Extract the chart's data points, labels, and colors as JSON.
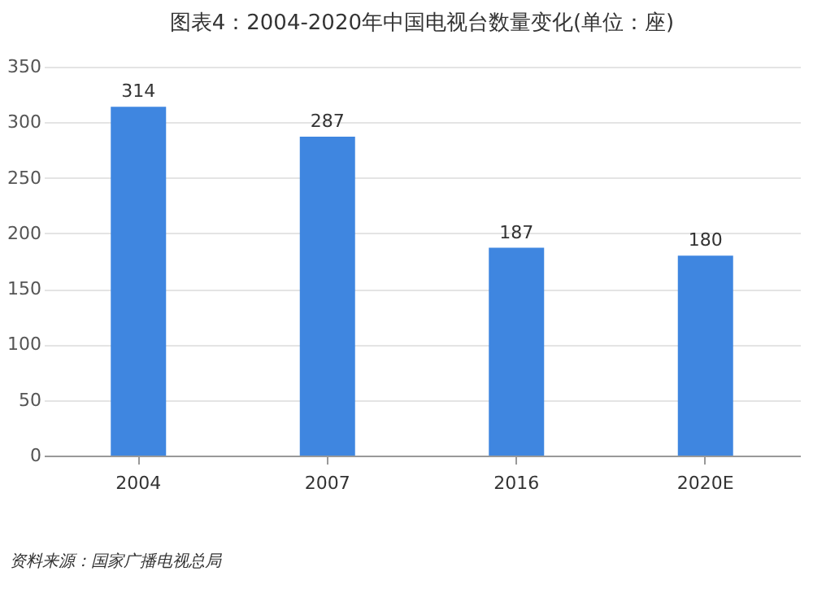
{
  "chart_data": {
    "type": "bar",
    "title": "图表4：2004-2020年中国电视台数量变化(单位：座)",
    "categories": [
      "2004",
      "2007",
      "2016",
      "2020E"
    ],
    "values": [
      314,
      287,
      187,
      180
    ],
    "color": "#3f86e0",
    "ylim": [
      0,
      350
    ],
    "yticks": [
      0,
      50,
      100,
      150,
      200,
      250,
      300,
      350
    ],
    "grid": "y",
    "data_labels": true,
    "annotations": [
      "资料来源：国家广播电视总局"
    ]
  }
}
